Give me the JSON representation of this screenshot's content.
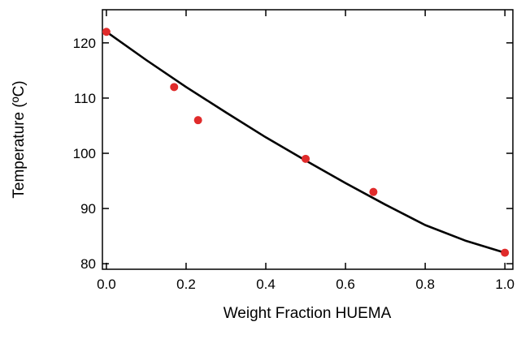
{
  "chart_data": {
    "type": "scatter",
    "title": "",
    "xlabel": "Weight Fraction HUEMA",
    "ylabel": "Temperature (ºC)",
    "xlim": [
      -0.01,
      1.02
    ],
    "ylim": [
      79,
      126
    ],
    "x_ticks": [
      0.0,
      0.2,
      0.4,
      0.6,
      0.8,
      1.0
    ],
    "x_tick_labels": [
      "0.0",
      "0.2",
      "0.4",
      "0.6",
      "0.8",
      "1.0"
    ],
    "y_ticks": [
      80,
      90,
      100,
      110,
      120
    ],
    "y_tick_labels": [
      "80",
      "90",
      "100",
      "110",
      "120"
    ],
    "grid": false,
    "legend": "none",
    "series": [
      {
        "type": "scatter",
        "color": "#e02b2b",
        "x": [
          0.0,
          0.17,
          0.23,
          0.5,
          0.67,
          1.0
        ],
        "y": [
          122,
          112,
          106,
          99,
          93,
          82
        ]
      },
      {
        "type": "line",
        "color": "#000000",
        "x": [
          0.0,
          0.1,
          0.2,
          0.3,
          0.4,
          0.5,
          0.6,
          0.7,
          0.8,
          0.9,
          1.0
        ],
        "y": [
          122,
          116.9,
          112.0,
          107.4,
          102.9,
          98.7,
          94.6,
          90.7,
          87.0,
          84.2,
          82
        ]
      }
    ]
  }
}
